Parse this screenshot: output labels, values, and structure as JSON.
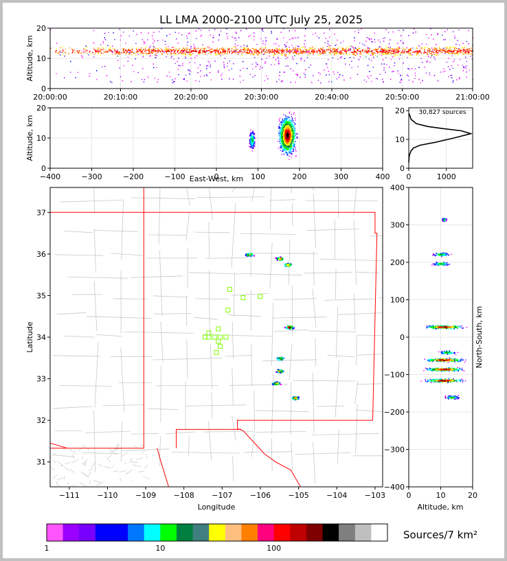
{
  "title": "LL LMA 2000-2100 UTC July 25, 2025",
  "colors": {
    "map_border": "#ff0000",
    "county": "#c8c8c8",
    "grid": "#e6e6e6",
    "station": "#7fff00",
    "line": "#000000"
  },
  "panels": {
    "time_altitude": {
      "ylabel": "Altitude, km",
      "yticks": [
        "0",
        "10",
        "20"
      ],
      "xticks": [
        "20:00:00",
        "20:10:00",
        "20:20:00",
        "20:30:00",
        "20:40:00",
        "20:50:00",
        "21:00:00"
      ]
    },
    "ew_altitude": {
      "ylabel": "Altitude, km",
      "xlabel": "East-West, km",
      "yticks": [
        "0",
        "10",
        "20"
      ],
      "xticks": [
        "−400",
        "−300",
        "−200",
        "−100",
        "0",
        "100",
        "200",
        "300",
        "400"
      ]
    },
    "histogram": {
      "annotation": "30,827 sources",
      "yticks": [
        "0",
        "10",
        "20"
      ],
      "xticks": [
        "0",
        "1000"
      ]
    },
    "map": {
      "xlabel": "Longitude",
      "ylabel": "Latitude",
      "xticks": [
        "−111",
        "−110",
        "−109",
        "−108",
        "−107",
        "−106",
        "−105",
        "−104",
        "−103"
      ],
      "yticks": [
        "31",
        "32",
        "33",
        "34",
        "35",
        "36",
        "37"
      ]
    },
    "ns_altitude": {
      "xlabel": "Altitude, km",
      "ylabel": "North-South, km",
      "xticks": [
        "0",
        "10",
        "20"
      ],
      "yticks": [
        "−400",
        "−300",
        "−200",
        "−100",
        "0",
        "100",
        "200",
        "300",
        "400"
      ]
    }
  },
  "colorbar": {
    "label": "Sources/7 km²",
    "ticks": [
      "1",
      "10",
      "100"
    ],
    "colors": [
      "#ff55ff",
      "#9900ff",
      "#7700ff",
      "#0000ff",
      "#0000ff",
      "#0077ff",
      "#00ffff",
      "#00ff00",
      "#007f3f",
      "#3f7f7f",
      "#ffff00",
      "#ffbf7f",
      "#ff7f00",
      "#ff007f",
      "#ff0000",
      "#bf0000",
      "#7f0000",
      "#000000",
      "#7f7f7f",
      "#bfbfbf",
      "#ffffff"
    ]
  },
  "chart_data": [
    {
      "type": "scatter",
      "title": "LL LMA 2000-2100 UTC July 25, 2025",
      "ylabel": "Altitude, km",
      "xlim": [
        "20:00:00",
        "21:00:00"
      ],
      "ylim": [
        0,
        20
      ],
      "description_series": "VHF source density vs time, concentrated at 8–15 km altitude throughout the hour"
    },
    {
      "type": "scatter",
      "xlabel": "East-West, km",
      "ylabel": "Altitude, km",
      "xlim": [
        -400,
        400
      ],
      "ylim": [
        0,
        20
      ],
      "clusters": [
        {
          "x_range": [
            75,
            95
          ],
          "alt_range": [
            5,
            14
          ]
        },
        {
          "x_range": [
            140,
            200
          ],
          "alt_range": [
            2,
            20
          ]
        }
      ]
    },
    {
      "type": "line",
      "annotation": "30,827 sources",
      "xlim": [
        0,
        1700
      ],
      "ylim": [
        0,
        21
      ],
      "x": [
        0,
        10,
        30,
        60,
        120,
        300,
        700,
        1200,
        1650,
        1400,
        900,
        500,
        200,
        60,
        10
      ],
      "y": [
        2,
        4,
        5,
        6,
        7,
        8,
        9,
        10.5,
        12,
        13,
        13.8,
        14.5,
        15.5,
        17,
        19
      ]
    },
    {
      "type": "scatter",
      "xlabel": "Longitude",
      "ylabel": "Latitude",
      "xlim": [
        -111.5,
        -102.8
      ],
      "ylim": [
        30.4,
        37.6
      ],
      "clusters": [
        {
          "lon": -106.3,
          "lat": 36.0
        },
        {
          "lon": -105.5,
          "lat": 35.9
        },
        {
          "lon": -105.3,
          "lat": 35.75
        },
        {
          "lon": -105.25,
          "lat": 34.25
        },
        {
          "lon": -105.5,
          "lat": 33.5
        },
        {
          "lon": -105.5,
          "lat": 33.2
        },
        {
          "lon": -105.6,
          "lat": 32.9
        },
        {
          "lon": -105.1,
          "lat": 32.55
        }
      ],
      "stations": [
        {
          "lon": -106.8,
          "lat": 35.15
        },
        {
          "lon": -106.45,
          "lat": 34.95
        },
        {
          "lon": -106.0,
          "lat": 34.98
        },
        {
          "lon": -106.85,
          "lat": 34.65
        },
        {
          "lon": -107.1,
          "lat": 34.2
        },
        {
          "lon": -107.35,
          "lat": 34.1
        },
        {
          "lon": -107.45,
          "lat": 34.0
        },
        {
          "lon": -107.35,
          "lat": 34.0
        },
        {
          "lon": -107.2,
          "lat": 34.0
        },
        {
          "lon": -107.05,
          "lat": 34.0
        },
        {
          "lon": -106.9,
          "lat": 34.0
        },
        {
          "lon": -107.1,
          "lat": 33.9
        },
        {
          "lon": -107.05,
          "lat": 33.78
        },
        {
          "lon": -107.15,
          "lat": 33.63
        }
      ]
    },
    {
      "type": "scatter",
      "xlabel": "Altitude, km",
      "ylabel": "North-South, km",
      "xlim": [
        0,
        20
      ],
      "ylim": [
        -400,
        400
      ],
      "clusters": [
        {
          "ns": 315,
          "alt_range": [
            10,
            12
          ]
        },
        {
          "ns": 222,
          "alt_range": [
            6,
            14
          ]
        },
        {
          "ns": 197,
          "alt_range": [
            6,
            14
          ]
        },
        {
          "ns": 28,
          "alt_range": [
            2,
            20
          ]
        },
        {
          "ns": -40,
          "alt_range": [
            8,
            16
          ]
        },
        {
          "ns": -60,
          "alt_range": [
            2,
            20
          ]
        },
        {
          "ns": -85,
          "alt_range": [
            2,
            20
          ]
        },
        {
          "ns": -115,
          "alt_range": [
            2,
            20
          ]
        },
        {
          "ns": -160,
          "alt_range": [
            10,
            17
          ]
        }
      ]
    }
  ]
}
